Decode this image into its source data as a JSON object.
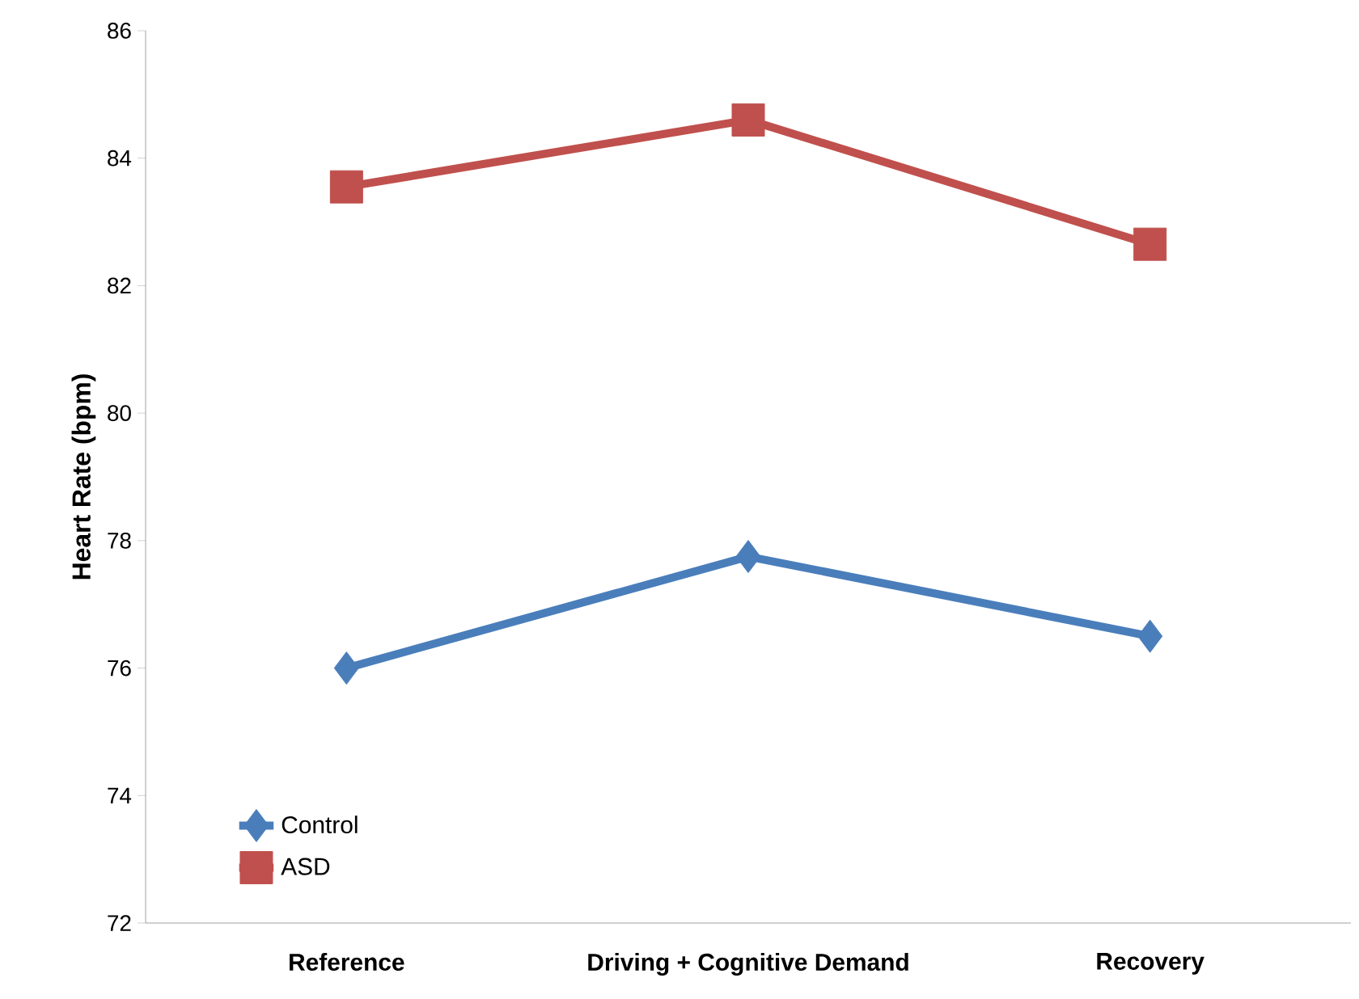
{
  "chart_data": {
    "type": "line",
    "ylabel": "Heart Rate (bpm)",
    "categories": [
      "Reference",
      "Driving + Cognitive Demand",
      "Recovery"
    ],
    "series": [
      {
        "name": "Control",
        "color": "#4a7ebb",
        "marker": "diamond",
        "values": [
          76.0,
          77.75,
          76.5
        ]
      },
      {
        "name": "ASD",
        "color": "#c0504d",
        "marker": "square",
        "values": [
          83.55,
          84.6,
          82.65
        ]
      }
    ],
    "ylim": [
      72,
      86
    ],
    "yticks": [
      72,
      74,
      76,
      78,
      80,
      82,
      84,
      86
    ],
    "grid": false,
    "legend": "bottom left",
    "line_style": "solid"
  }
}
